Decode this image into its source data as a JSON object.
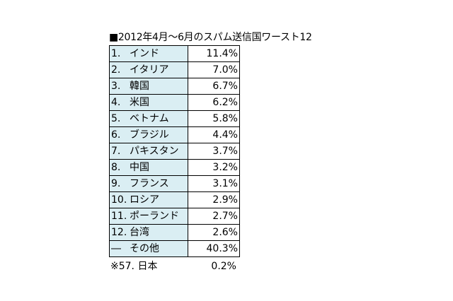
{
  "title": "■2012年4月～6月のスパム送信国ワースト12",
  "table": {
    "rows": [
      {
        "rank": "1.",
        "country": "インド",
        "value": "11.4%"
      },
      {
        "rank": "2.",
        "country": "イタリア",
        "value": "7.0%"
      },
      {
        "rank": "3.",
        "country": "韓国",
        "value": "6.7%"
      },
      {
        "rank": "4.",
        "country": "米国",
        "value": "6.2%"
      },
      {
        "rank": "5.",
        "country": "ベトナム",
        "value": "5.8%"
      },
      {
        "rank": "6.",
        "country": "ブラジル",
        "value": "4.4%"
      },
      {
        "rank": "7.",
        "country": "パキスタン",
        "value": "3.7%"
      },
      {
        "rank": "8.",
        "country": "中国",
        "value": "3.2%"
      },
      {
        "rank": "9.",
        "country": "フランス",
        "value": "3.1%"
      },
      {
        "rank": "10.",
        "country": "ロシア",
        "value": "2.9%"
      },
      {
        "rank": "11.",
        "country": "ポーランド",
        "value": "2.7%"
      },
      {
        "rank": "12.",
        "country": "台湾",
        "value": "2.6%"
      },
      {
        "rank": "―",
        "country": "その他",
        "value": "40.3%"
      }
    ]
  },
  "footnote": {
    "label": "※57. 日本",
    "value": "0.2%"
  },
  "colors": {
    "name_cell_bg": "#DAEEF3",
    "border": "#000000"
  }
}
